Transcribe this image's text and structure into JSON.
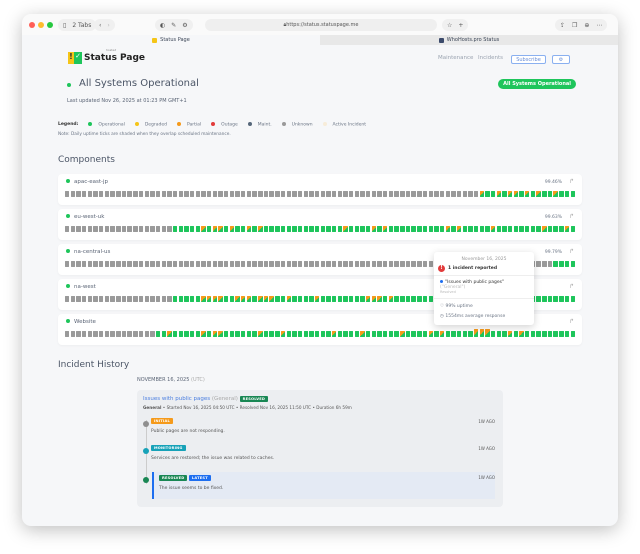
{
  "browser": {
    "tabs_count": "2 Tabs",
    "url": "https://status.statuspage.me",
    "tabs": [
      {
        "label": "Status Page",
        "active": true
      },
      {
        "label": "WhoHosts.pro Status",
        "active": false
      }
    ]
  },
  "header": {
    "logo_text": "Status Page",
    "logo_sup": "hosted",
    "nav": [
      "Maintenance",
      "Incidents"
    ],
    "subscribe": "Subscribe",
    "settings_icon": "gear-icon"
  },
  "hero": {
    "title": "All Systems Operational",
    "updated": "Last updated Nov 26, 2025 at 01:23 PM GMT+1",
    "badge": "All Systems Operational",
    "accent": "#1ec55b"
  },
  "legend": {
    "label": "Legend:",
    "items": [
      {
        "label": "Operational",
        "color": "#1ec55b"
      },
      {
        "label": "Degraded",
        "color": "#f5c518"
      },
      {
        "label": "Partial",
        "color": "#f59a1b"
      },
      {
        "label": "Outage",
        "color": "#e23b3b"
      },
      {
        "label": "Maint.",
        "color": "#56677a"
      },
      {
        "label": "Unknown",
        "color": "#9a9a9a"
      },
      {
        "label": "Active Incident",
        "color": "#f7ecd9"
      }
    ],
    "note": "Note: Daily uptime ticks are shaded when they overlap scheduled maintenance."
  },
  "components": {
    "title": "Components",
    "items": [
      {
        "name": "apac-east-jp",
        "uptime": "99.46%",
        "ticks": [
          [
            "u",
            73
          ],
          [
            "p",
            1
          ],
          [
            "o",
            2
          ],
          [
            "p",
            1
          ],
          [
            "o",
            1
          ],
          [
            "p",
            2
          ],
          [
            "o",
            1
          ],
          [
            "p",
            1
          ],
          [
            "o",
            1
          ],
          [
            "p",
            1
          ],
          [
            "o",
            2
          ],
          [
            "p",
            1
          ],
          [
            "o",
            3
          ]
        ]
      },
      {
        "name": "eu-west-uk",
        "uptime": "99.63%",
        "ticks": [
          [
            "u",
            19
          ],
          [
            "o",
            5
          ],
          [
            "p",
            1
          ],
          [
            "o",
            1
          ],
          [
            "p",
            2
          ],
          [
            "o",
            1
          ],
          [
            "p",
            1
          ],
          [
            "o",
            2
          ],
          [
            "p",
            1
          ],
          [
            "o",
            1
          ],
          [
            "p",
            1
          ],
          [
            "o",
            14
          ],
          [
            "p",
            1
          ],
          [
            "o",
            4
          ],
          [
            "p",
            1
          ],
          [
            "o",
            1
          ],
          [
            "p",
            1
          ],
          [
            "o",
            10
          ],
          [
            "p",
            1
          ],
          [
            "o",
            1
          ],
          [
            "p",
            1
          ],
          [
            "o",
            5
          ],
          [
            "p",
            1
          ],
          [
            "o",
            8
          ],
          [
            "p",
            1
          ],
          [
            "o",
            3
          ],
          [
            "p",
            1
          ],
          [
            "o",
            1
          ]
        ]
      },
      {
        "name": "na-central-us",
        "uptime": "99.79%",
        "ticks": [
          [
            "u",
            86
          ],
          [
            "o",
            4
          ]
        ]
      },
      {
        "name": "na-west",
        "uptime": "",
        "ticks": [
          [
            "u",
            19
          ],
          [
            "o",
            5
          ],
          [
            "p",
            4
          ],
          [
            "o",
            2
          ],
          [
            "p",
            3
          ],
          [
            "o",
            1
          ],
          [
            "p",
            3
          ],
          [
            "o",
            2
          ],
          [
            "p",
            1
          ],
          [
            "o",
            4
          ],
          [
            "p",
            1
          ],
          [
            "o",
            8
          ],
          [
            "p",
            3
          ],
          [
            "o",
            1
          ],
          [
            "p",
            1
          ],
          [
            "o",
            10
          ],
          [
            "p",
            1
          ],
          [
            "o",
            21
          ]
        ]
      },
      {
        "name": "Website",
        "uptime": "",
        "ticks": [
          [
            "u",
            16
          ],
          [
            "o",
            2
          ],
          [
            "p",
            1
          ],
          [
            "o",
            5
          ],
          [
            "p",
            1
          ],
          [
            "o",
            1
          ],
          [
            "p",
            2
          ],
          [
            "o",
            6
          ],
          [
            "p",
            1
          ],
          [
            "o",
            3
          ],
          [
            "p",
            1
          ],
          [
            "o",
            8
          ],
          [
            "p",
            1
          ],
          [
            "o",
            4
          ],
          [
            "p",
            1
          ],
          [
            "o",
            6
          ],
          [
            "p",
            1
          ],
          [
            "o",
            4
          ],
          [
            "p",
            1
          ],
          [
            "o",
            1
          ],
          [
            "p",
            1
          ],
          [
            "o",
            5
          ],
          [
            "h",
            3
          ],
          [
            "o",
            3
          ],
          [
            "p",
            1
          ],
          [
            "o",
            1
          ],
          [
            "p",
            1
          ],
          [
            "o",
            9
          ]
        ]
      }
    ]
  },
  "tooltip": {
    "date": "November 16, 2025",
    "count": "1 incident reported",
    "incident": "\"Issues with public pages\"",
    "incident_group": "(\"General\")",
    "incident_status": "Resolved",
    "uptime": "99% uptime",
    "response": "1554ms average response"
  },
  "history": {
    "title": "Incident History",
    "date": "NOVEMBER 16, 2025",
    "tz": "(UTC)",
    "incident": {
      "title": "Issues with public pages",
      "group": "(General)",
      "badge": "RESOLVED",
      "meta_bold": "General",
      "meta": " • Started Nov 16, 2025 04:50 UTC • Resolved Nov 16, 2025 11:50 UTC • Duration 6h 59m",
      "updates": [
        {
          "badge": "INITIAL",
          "color": "#f59a1b",
          "dot": "#8f8f8f",
          "text": "Public pages are not responding.",
          "ago": "1W AGO"
        },
        {
          "badge": "MONITORING",
          "color": "#17a2b8",
          "dot": "#17a2b8",
          "text": "Services are restored; the issue was related to caches.",
          "ago": "1W AGO"
        },
        {
          "badge": "RESOLVED",
          "color": "#198754",
          "dot": "#198754",
          "latest": "LATEST",
          "text": "The issue seems to be fixed.",
          "ago": "1W AGO"
        }
      ]
    }
  }
}
